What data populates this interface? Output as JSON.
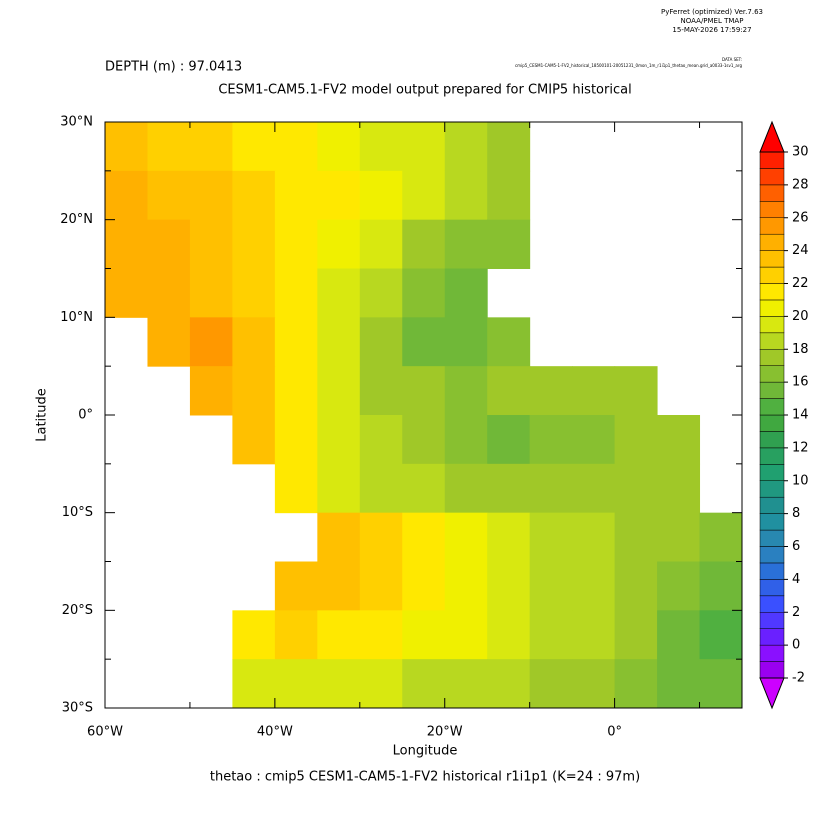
{
  "chart_data": {
    "type": "heatmap-map",
    "header": [
      "PyFerret (optimized) Ver.7.63",
      "NOAA/PMEL TMAP",
      "15-MAY-2026 17:59:27"
    ],
    "dataset_label": "DATA SET:",
    "dataset": "cmip5_CESM1-CAM5-1-FV2_historical_18500101-20051231_0mon_1m_r1i1p1_thetao_mean.grid_a0033-1sv1_arg",
    "subtitle": "DEPTH (m) : 97.0413",
    "title": "CESM1-CAM5.1-FV2 model output prepared for CMIP5 historical",
    "xlabel": "Longitude",
    "ylabel": "Latitude",
    "footer": "thetao : cmip5 CESM1-CAM5-1-FV2 historical r1i1p1   (K=24 : 97m)",
    "xlim": [
      -60,
      15
    ],
    "ylim": [
      -30,
      30
    ],
    "xticks": [
      {
        "value": -60,
        "label": "60°W"
      },
      {
        "value": -40,
        "label": "40°W"
      },
      {
        "value": -20,
        "label": "20°W"
      },
      {
        "value": 0,
        "label": "0°"
      }
    ],
    "xminor": [
      -50,
      -30,
      -10,
      10
    ],
    "yticks": [
      {
        "value": 30,
        "label": "30°N"
      },
      {
        "value": 20,
        "label": "20°N"
      },
      {
        "value": 10,
        "label": "10°N"
      },
      {
        "value": 0,
        "label": "0°"
      },
      {
        "value": -10,
        "label": "10°S"
      },
      {
        "value": -20,
        "label": "20°S"
      },
      {
        "value": -30,
        "label": "30°S"
      }
    ],
    "yminor": [
      25,
      15,
      5,
      -5,
      -15,
      -25
    ],
    "x": [
      -57.5,
      -52.5,
      -47.5,
      -42.5,
      -37.5,
      -32.5,
      -27.5,
      -22.5,
      -17.5,
      -12.5,
      -7.5,
      -2.5,
      2.5,
      7.5,
      12.5
    ],
    "y": [
      27.5,
      22.5,
      17.5,
      12.5,
      7.5,
      2.5,
      -2.5,
      -7.5,
      -12.5,
      -17.5,
      -22.5,
      -27.5
    ],
    "values": [
      [
        23,
        22.5,
        22,
        21.5,
        21,
        20.5,
        19.5,
        19,
        18.5,
        17.5,
        null,
        null,
        null,
        null,
        null
      ],
      [
        24,
        23.5,
        23,
        22,
        21.5,
        21,
        20,
        19,
        18,
        17,
        null,
        null,
        null,
        null,
        null
      ],
      [
        24.5,
        24,
        23,
        22.5,
        21.5,
        20.5,
        19.5,
        17.5,
        16,
        16,
        null,
        null,
        null,
        null,
        null
      ],
      [
        24,
        24,
        23.5,
        22,
        21,
        19.5,
        18,
        16,
        15.5,
        null,
        null,
        null,
        null,
        null,
        null
      ],
      [
        null,
        24,
        25,
        23,
        21,
        19,
        17,
        15,
        15,
        16.5,
        null,
        null,
        null,
        null,
        null
      ],
      [
        null,
        null,
        24,
        23,
        21,
        19,
        17,
        17,
        16.5,
        17,
        17,
        17.5,
        17.5,
        null,
        null
      ],
      [
        null,
        null,
        null,
        23,
        21,
        19,
        18,
        17,
        16,
        15.5,
        16,
        16.5,
        17,
        17,
        null
      ],
      [
        null,
        null,
        null,
        null,
        21,
        19.5,
        18.5,
        18,
        17.5,
        17,
        17,
        17,
        17,
        17,
        null
      ],
      [
        null,
        null,
        null,
        null,
        null,
        23,
        22,
        21,
        20,
        19,
        18.5,
        18,
        17.5,
        17,
        16.5
      ],
      [
        null,
        null,
        null,
        null,
        23.5,
        23,
        22,
        21.5,
        20.5,
        19.5,
        18.5,
        18,
        17.5,
        16,
        15.5
      ],
      [
        null,
        null,
        null,
        21,
        22,
        21.5,
        21,
        20.5,
        20,
        19,
        18.5,
        18,
        17,
        15,
        14.5
      ],
      [
        null,
        null,
        null,
        19.5,
        19,
        19,
        19,
        18.5,
        18.5,
        18,
        17.5,
        17,
        16,
        15.5,
        15
      ]
    ],
    "colorbar": {
      "levels": [
        -2,
        -1,
        0,
        1,
        2,
        3,
        4,
        5,
        6,
        7,
        8,
        9,
        10,
        11,
        12,
        13,
        14,
        15,
        16,
        17,
        18,
        19,
        20,
        21,
        22,
        23,
        24,
        25,
        26,
        27,
        28,
        29,
        30
      ],
      "colors": [
        "#9a00f0",
        "#8a10ff",
        "#6a20ff",
        "#5038ff",
        "#3a50ff",
        "#3060e8",
        "#2a70d8",
        "#2a80c0",
        "#2888b0",
        "#2090a0",
        "#209090",
        "#209880",
        "#20a070",
        "#28a060",
        "#30a050",
        "#40a840",
        "#50b040",
        "#70b838",
        "#88c030",
        "#a0c828",
        "#b8d820",
        "#d8e810",
        "#f0f000",
        "#ffe800",
        "#ffd000",
        "#ffc000",
        "#ffb000",
        "#ff9800",
        "#ff8000",
        "#ff6000",
        "#ff4000",
        "#ff2000"
      ],
      "over_color": "#ff0000",
      "under_color": "#cc00ff",
      "ticks": [
        -2,
        0,
        2,
        4,
        6,
        8,
        10,
        12,
        14,
        16,
        18,
        20,
        22,
        24,
        26,
        28,
        30
      ]
    }
  }
}
